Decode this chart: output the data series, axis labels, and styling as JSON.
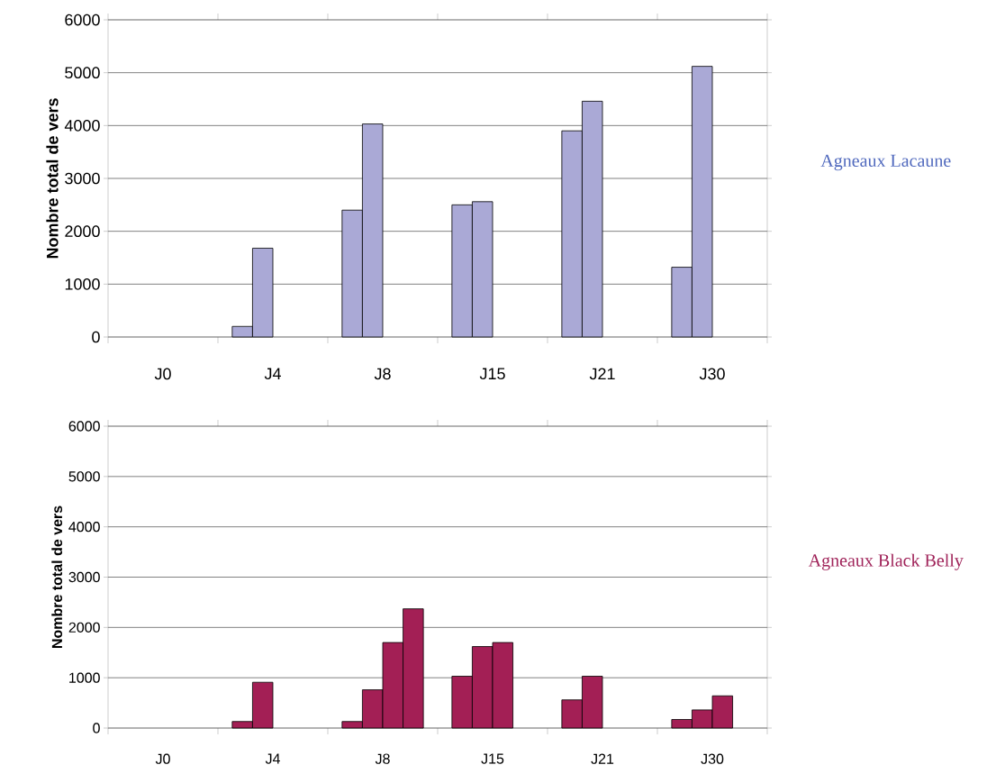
{
  "chart_data": [
    {
      "type": "bar",
      "categories": [
        "J0",
        "J4",
        "J8",
        "J15",
        "J21",
        "J30"
      ],
      "ylabel": "Nombre total de vers",
      "ylim": [
        0,
        6000
      ],
      "yticks": [
        0,
        1000,
        2000,
        3000,
        4000,
        5000,
        6000
      ],
      "grid": "y",
      "annotations": [
        "Agneaux Lacaune"
      ],
      "series": [
        {
          "color": "#aaa9d6",
          "values": [
            null,
            200,
            2400,
            2500,
            3900,
            1320
          ]
        },
        {
          "color": "#aaa9d6",
          "values": [
            null,
            1680,
            4030,
            2560,
            4460,
            5120
          ]
        }
      ]
    },
    {
      "type": "bar",
      "categories": [
        "J0",
        "J4",
        "J8",
        "J15",
        "J21",
        "J30"
      ],
      "ylabel": "Nombre total de vers",
      "ylim": [
        0,
        6000
      ],
      "yticks": [
        0,
        1000,
        2000,
        3000,
        4000,
        5000,
        6000
      ],
      "grid": "y",
      "annotations": [
        "Agneaux Black Belly"
      ],
      "series": [
        {
          "color": "#a31f55",
          "values": [
            null,
            130,
            130,
            1030,
            560,
            170
          ]
        },
        {
          "color": "#a31f55",
          "values": [
            null,
            910,
            760,
            1620,
            1030,
            360
          ]
        },
        {
          "color": "#a31f55",
          "values": [
            null,
            null,
            1700,
            1700,
            null,
            640
          ]
        },
        {
          "color": "#a31f55",
          "values": [
            null,
            null,
            2370,
            null,
            null,
            null
          ]
        }
      ]
    }
  ]
}
